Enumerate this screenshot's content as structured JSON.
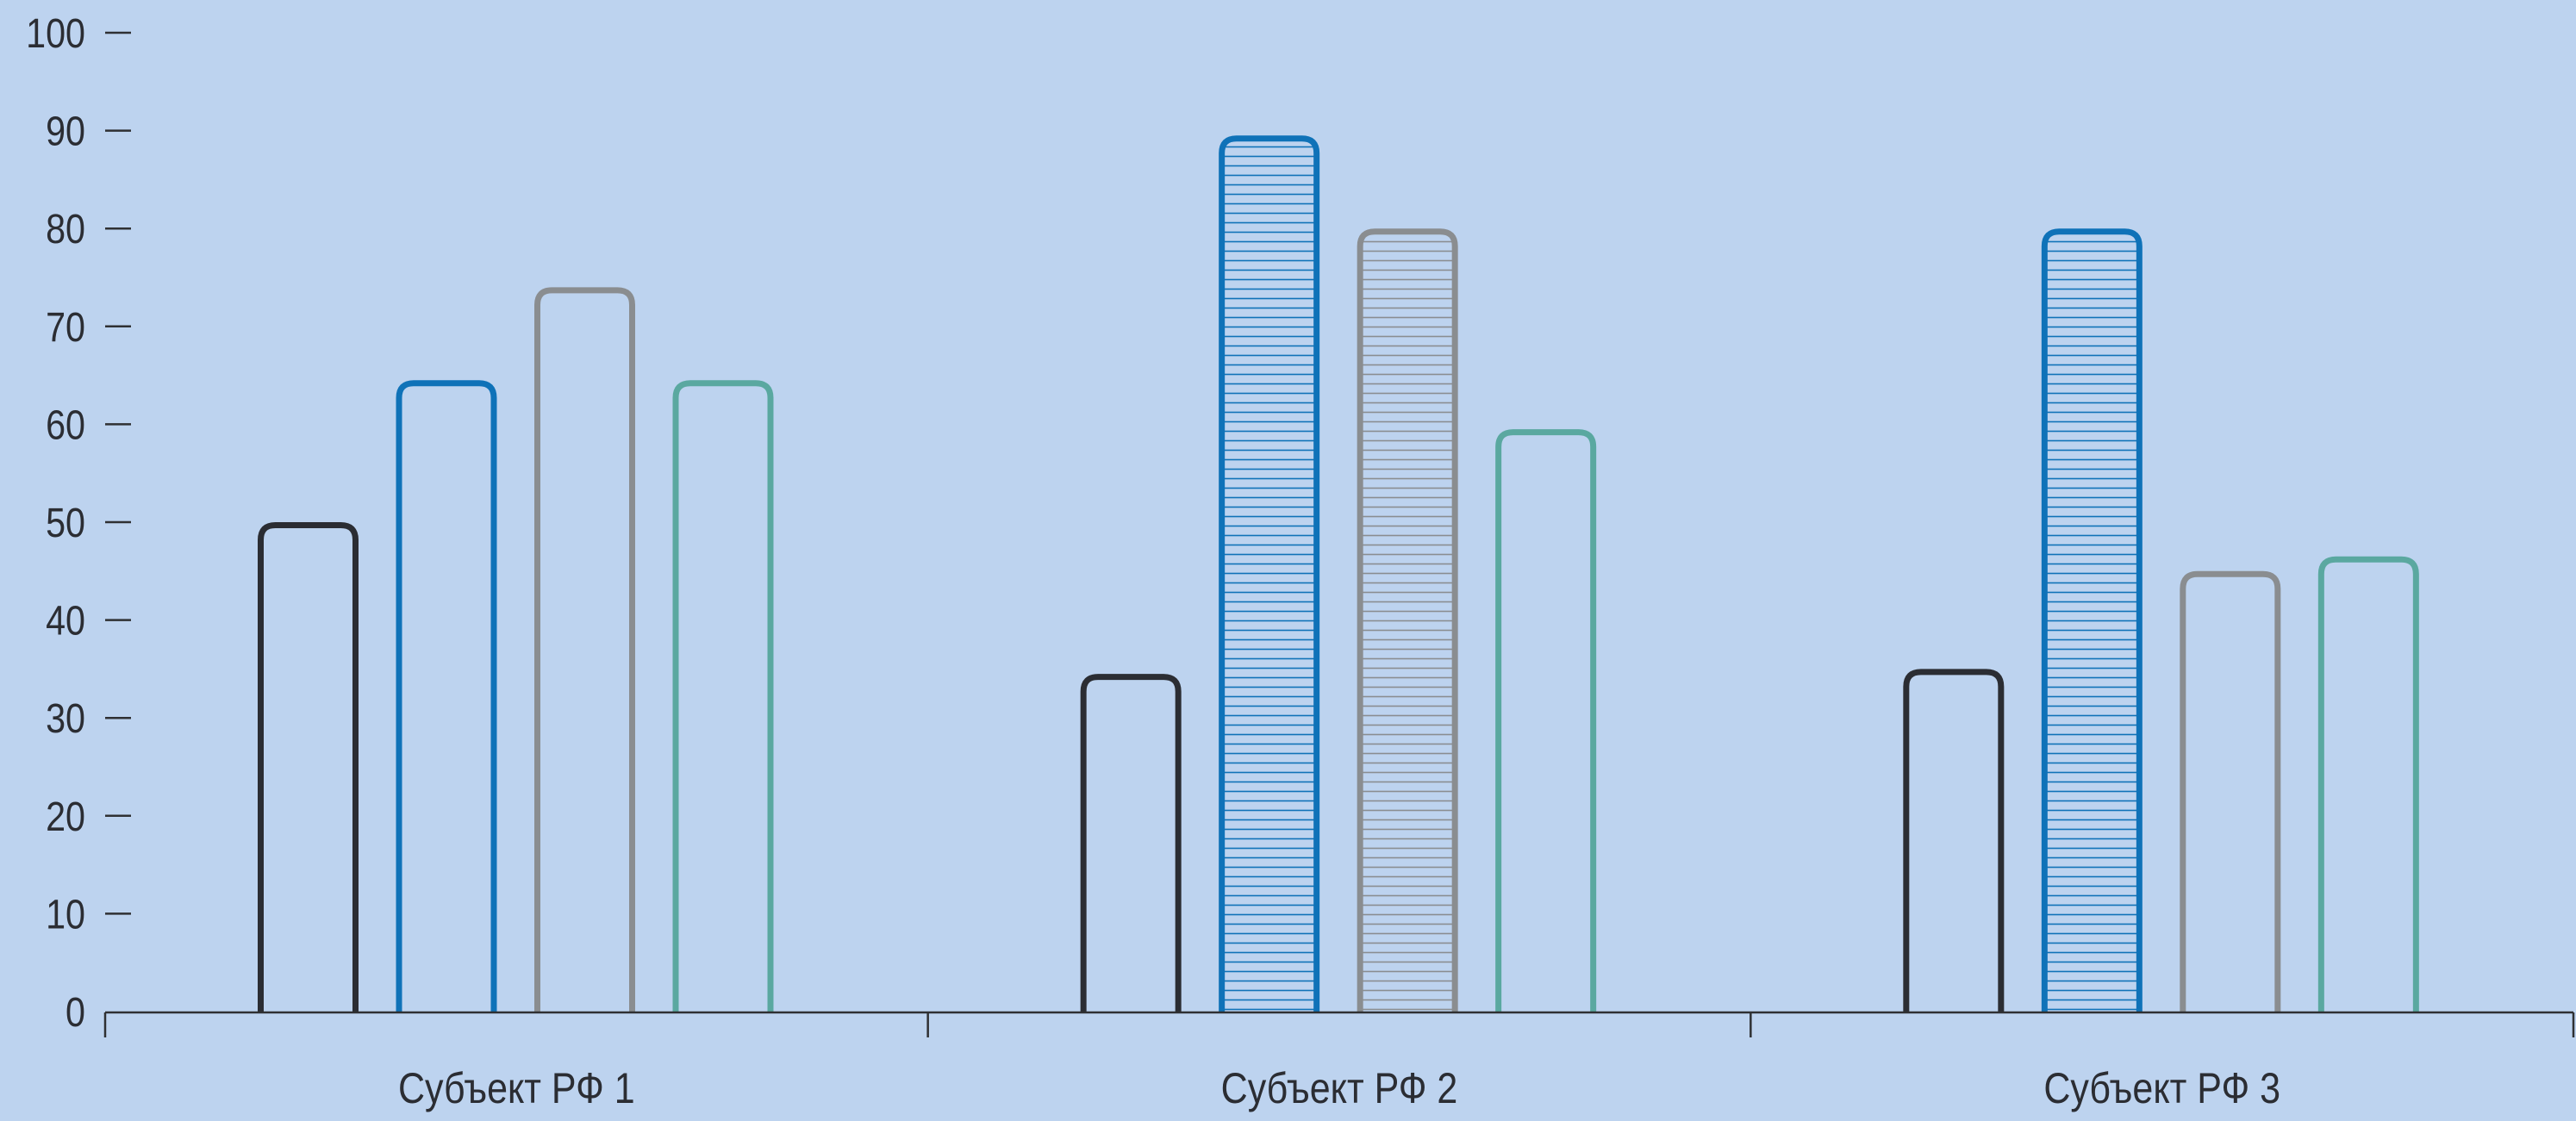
{
  "chart_data": {
    "type": "bar",
    "categories": [
      "Субъект РФ 1",
      "Субъект РФ 2",
      "Субъект РФ 3"
    ],
    "ylim": [
      0,
      100
    ],
    "yticks": [
      0,
      10,
      20,
      30,
      40,
      50,
      60,
      70,
      80,
      90,
      100
    ],
    "grid": false,
    "legend": "none",
    "series": [
      {
        "values": [
          50,
          34.5,
          35
        ],
        "color": "#2b2d33",
        "hatched": [
          false,
          false,
          false
        ]
      },
      {
        "values": [
          64.5,
          89.5,
          80
        ],
        "color": "#0f72b8",
        "hatched": [
          false,
          true,
          true
        ]
      },
      {
        "values": [
          74,
          80,
          45
        ],
        "color": "#8a8d90",
        "hatched": [
          false,
          true,
          false
        ]
      },
      {
        "values": [
          64.5,
          59.5,
          46.5
        ],
        "color": "#5aa8a0",
        "hatched": [
          false,
          false,
          false
        ]
      }
    ],
    "background": "#bdd3ef",
    "axis_color": "#2f3033"
  }
}
